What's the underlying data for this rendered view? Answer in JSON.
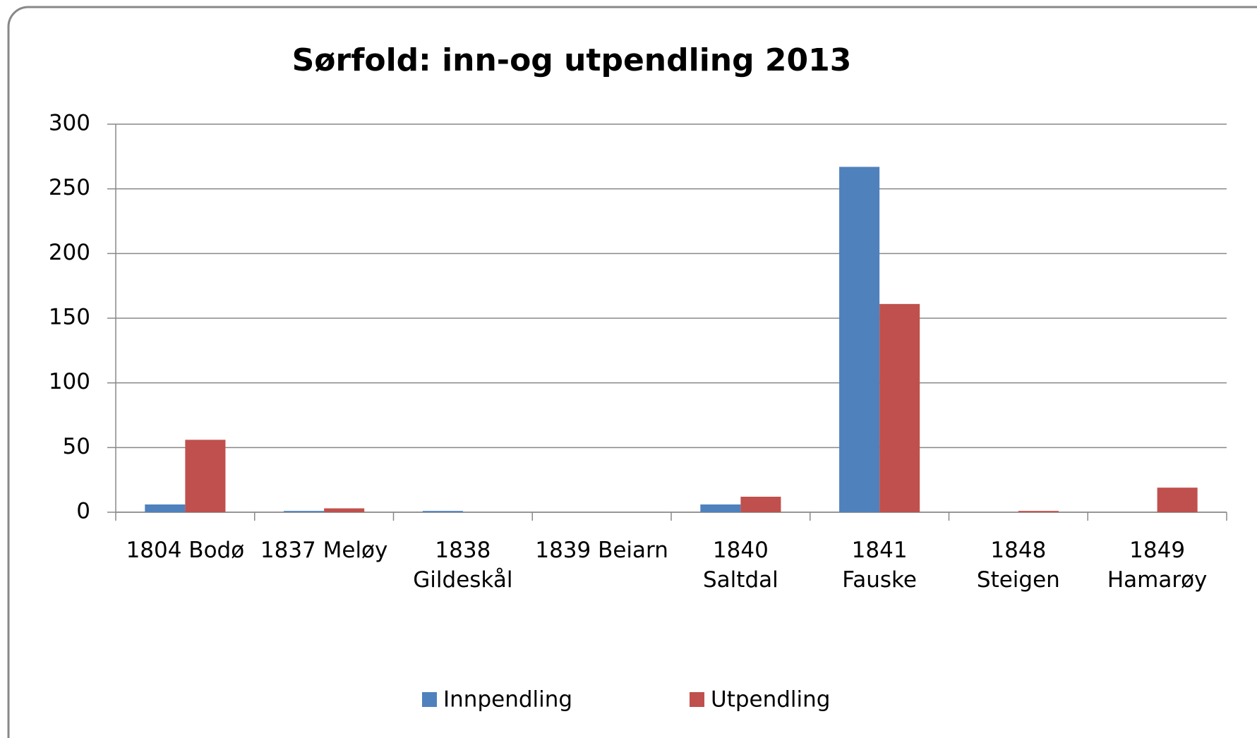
{
  "chart_data": {
    "type": "bar",
    "title": "Sørfold: inn-og utpendling 2013",
    "categories": [
      "1804 Bodø",
      "1837 Meløy",
      "1838\nGildeskål",
      "1839 Beiarn",
      "1840\nSaltdal",
      "1841\nFauske",
      "1848\nSteigen",
      "1849\nHamarøy"
    ],
    "series": [
      {
        "name": "Innpendling",
        "color": "#4f81bd",
        "values": [
          6,
          1,
          1,
          0,
          6,
          267,
          0,
          0
        ]
      },
      {
        "name": "Utpendling",
        "color": "#c0504d",
        "values": [
          56,
          3,
          0,
          0,
          12,
          161,
          1,
          19
        ]
      }
    ],
    "ylim": [
      0,
      300
    ],
    "yticks": [
      0,
      50,
      100,
      150,
      200,
      250,
      300
    ],
    "grid": true,
    "legend": "bottom"
  }
}
